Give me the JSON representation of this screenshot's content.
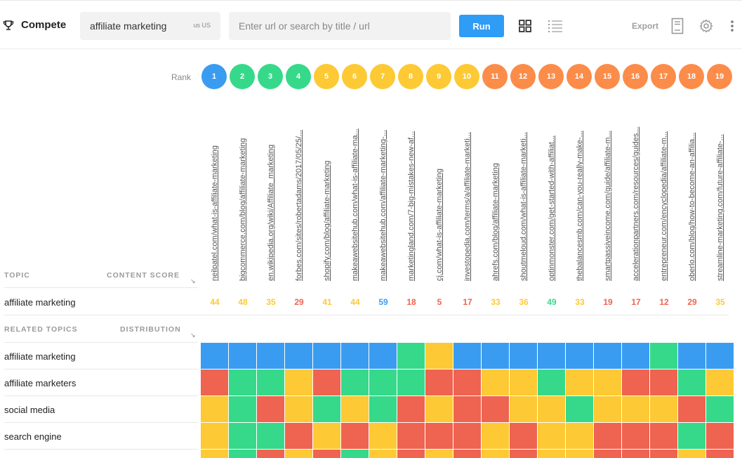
{
  "toolbar": {
    "brand": "Compete",
    "brand_icon": "trophy-icon",
    "keyword": "affiliate marketing",
    "locale": "us US",
    "url_placeholder": "Enter url or search by title / url",
    "run_label": "Run",
    "view_grid_icon": "grid-view-icon",
    "view_list_icon": "list-view-icon",
    "export_label": "Export",
    "export_icon": "document-icon",
    "settings_icon": "gear-icon",
    "more_icon": "more-vertical-icon"
  },
  "rank_label": "Rank",
  "colors": {
    "blue": "#3a9cf0",
    "green": "#36d98a",
    "yellow": "#fdc934",
    "orange": "#fb8c4a",
    "red": "#ef6351"
  },
  "columns": [
    {
      "rank": "1",
      "rank_color": "blue",
      "url": "neilpatel.com/what-is-affiliate-marketing",
      "score": "44",
      "score_color": "yellow"
    },
    {
      "rank": "2",
      "rank_color": "green",
      "url": "bigcommerce.com/blog/affiliate-marketing",
      "score": "48",
      "score_color": "yellow"
    },
    {
      "rank": "3",
      "rank_color": "green",
      "url": "en.wikipedia.org/wiki/Affiliate_marketing",
      "score": "35",
      "score_color": "yellow"
    },
    {
      "rank": "4",
      "rank_color": "green",
      "url": "forbes.com/sites/robertadams/2017/05/25/...",
      "score": "29",
      "score_color": "red"
    },
    {
      "rank": "5",
      "rank_color": "yellow",
      "url": "shopify.com/blog/affiliate-marketing",
      "score": "41",
      "score_color": "yellow"
    },
    {
      "rank": "6",
      "rank_color": "yellow",
      "url": "makeawebsitehub.com/what-is-affiliate-ma...",
      "score": "44",
      "score_color": "yellow"
    },
    {
      "rank": "7",
      "rank_color": "yellow",
      "url": "makeawebsitehub.com/affiliate-marketing-...",
      "score": "59",
      "score_color": "blue"
    },
    {
      "rank": "8",
      "rank_color": "yellow",
      "url": "marketingland.com/7-big-mistakes-new-af...",
      "score": "18",
      "score_color": "red"
    },
    {
      "rank": "9",
      "rank_color": "yellow",
      "url": "cj.com/what-is-affiliate-marketing",
      "score": "5",
      "score_color": "red"
    },
    {
      "rank": "10",
      "rank_color": "yellow",
      "url": "investopedia.com/terms/a/affiliate-marketi...",
      "score": "17",
      "score_color": "red"
    },
    {
      "rank": "11",
      "rank_color": "orange",
      "url": "ahrefs.com/blog/affiliate-marketing",
      "score": "33",
      "score_color": "yellow"
    },
    {
      "rank": "12",
      "rank_color": "orange",
      "url": "shoutmeloud.com/what-is-affiliate-marketi...",
      "score": "36",
      "score_color": "yellow"
    },
    {
      "rank": "13",
      "rank_color": "orange",
      "url": "optinmonster.com/get-started-with-affiliat...",
      "score": "49",
      "score_color": "green"
    },
    {
      "rank": "14",
      "rank_color": "orange",
      "url": "thebalancesmb.com/can-you-really-make-...",
      "score": "33",
      "score_color": "yellow"
    },
    {
      "rank": "15",
      "rank_color": "orange",
      "url": "smartpassiveincome.com/guide/affiliate-m...",
      "score": "19",
      "score_color": "red"
    },
    {
      "rank": "16",
      "rank_color": "orange",
      "url": "accelerationpartners.com/resources/guides...",
      "score": "17",
      "score_color": "red"
    },
    {
      "rank": "17",
      "rank_color": "orange",
      "url": "entrepreneur.com/encyclopedia/affiliate-m...",
      "score": "12",
      "score_color": "red"
    },
    {
      "rank": "18",
      "rank_color": "orange",
      "url": "oberlo.com/blog/how-to-become-an-affilia...",
      "score": "29",
      "score_color": "red"
    },
    {
      "rank": "19",
      "rank_color": "orange",
      "url": "streamline-marketing.com/future-affiliate-...",
      "score": "35",
      "score_color": "yellow"
    }
  ],
  "topic_header": "TOPIC",
  "content_score_header": "CONTENT SCORE",
  "topic_name": "affiliate marketing",
  "related_header": "RELATED TOPICS",
  "distribution_header": "DISTRIBUTION",
  "related_topics": [
    {
      "name": "affiliate marketing",
      "cells": [
        "blue",
        "blue",
        "blue",
        "blue",
        "blue",
        "blue",
        "blue",
        "green",
        "yellow",
        "blue",
        "blue",
        "blue",
        "blue",
        "blue",
        "blue",
        "blue",
        "green",
        "blue",
        "blue"
      ]
    },
    {
      "name": "affiliate marketers",
      "cells": [
        "red",
        "green",
        "green",
        "yellow",
        "red",
        "green",
        "green",
        "green",
        "red",
        "red",
        "yellow",
        "yellow",
        "green",
        "yellow",
        "yellow",
        "red",
        "red",
        "green",
        "yellow"
      ]
    },
    {
      "name": "social media",
      "cells": [
        "yellow",
        "green",
        "red",
        "yellow",
        "green",
        "yellow",
        "green",
        "red",
        "yellow",
        "red",
        "red",
        "yellow",
        "yellow",
        "green",
        "yellow",
        "yellow",
        "yellow",
        "red",
        "green"
      ]
    },
    {
      "name": "search engine",
      "cells": [
        "yellow",
        "green",
        "green",
        "red",
        "yellow",
        "red",
        "yellow",
        "red",
        "red",
        "red",
        "yellow",
        "red",
        "yellow",
        "yellow",
        "red",
        "red",
        "red",
        "green",
        "red"
      ]
    },
    {
      "name": "",
      "cells": [
        "yellow",
        "green",
        "red",
        "yellow",
        "red",
        "green",
        "yellow",
        "red",
        "yellow",
        "red",
        "yellow",
        "red",
        "yellow",
        "yellow",
        "red",
        "red",
        "red",
        "yellow",
        "red"
      ]
    }
  ]
}
